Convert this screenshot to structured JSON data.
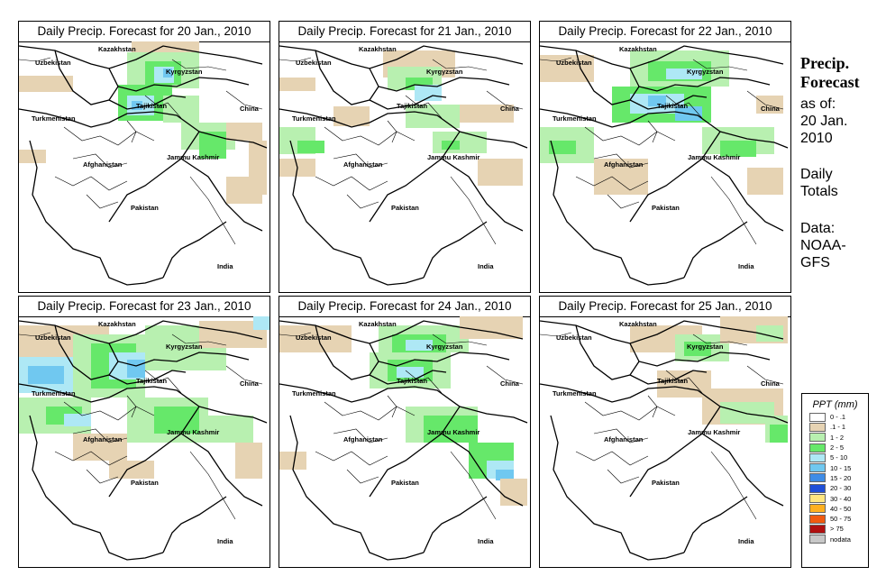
{
  "panels": [
    {
      "title": "Daily Precip. Forecast for  20 Jan., 2010",
      "day": "20 Jan."
    },
    {
      "title": "Daily Precip. Forecast for  21 Jan., 2010",
      "day": "21 Jan."
    },
    {
      "title": "Daily Precip. Forecast for  22 Jan., 2010",
      "day": "22 Jan."
    },
    {
      "title": "Daily Precip. Forecast for  23 Jan., 2010",
      "day": "23 Jan."
    },
    {
      "title": "Daily Precip. Forecast for  24 Jan., 2010",
      "day": "24 Jan."
    },
    {
      "title": "Daily Precip. Forecast for  25 Jan., 2010",
      "day": "25 Jan."
    }
  ],
  "map_labels": {
    "kazakhstan": "Kazakhstan",
    "uzbekistan": "Uzbekistan",
    "kyrgyzstan": "Kyrgyzstan",
    "tajikistan": "Tajikistan",
    "china": "China",
    "turkmenistan": "Turkmenistan",
    "jammu_kashmir": "Jammu Kashmir",
    "afghanistan": "Afghanistan",
    "pakistan": "Pakistan",
    "india": "India"
  },
  "sidebar": {
    "heading_line1": "Precip.",
    "heading_line2": "Forecast",
    "asof_line1": "as of:",
    "asof_line2": "20 Jan.",
    "asof_line3": "2010",
    "totals_line1": "Daily",
    "totals_line2": "Totals",
    "data_line1": "Data:",
    "data_line2": "NOAA-",
    "data_line3": "GFS"
  },
  "legend": {
    "title": "PPT (mm)",
    "items": [
      {
        "label": "0 - .1",
        "color": "#ffffff"
      },
      {
        "label": ".1 - 1",
        "color": "#e6d3b3"
      },
      {
        "label": "1 - 2",
        "color": "#b8f0b0"
      },
      {
        "label": "2 - 5",
        "color": "#66e86a"
      },
      {
        "label": "5 - 10",
        "color": "#aee8f5"
      },
      {
        "label": "10 - 15",
        "color": "#70c8f0"
      },
      {
        "label": "15 - 20",
        "color": "#3f8ce6"
      },
      {
        "label": "20 - 30",
        "color": "#1f4fd8"
      },
      {
        "label": "30 - 40",
        "color": "#ffe680"
      },
      {
        "label": "40 - 50",
        "color": "#ffb020"
      },
      {
        "label": "50 - 75",
        "color": "#f05a10"
      },
      {
        "label": "> 75",
        "color": "#b01010"
      },
      {
        "label": "nodata",
        "color": "#c8c8c8"
      }
    ]
  }
}
